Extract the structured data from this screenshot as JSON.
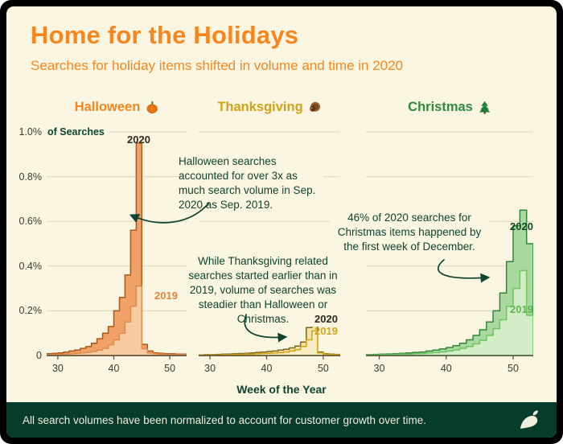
{
  "style": {
    "background": "#FAF6E1",
    "frame_border": "#000000",
    "accent_orange": "#F8861D",
    "accent_gold": "#D2A217",
    "accent_green": "#2E8B3D",
    "dark_green": "#0F4430",
    "grid_color": "#DBD6BB",
    "axis_color": "#55503C",
    "tick_text": "#3B3B2E",
    "footer_bg": "#053D2A",
    "footer_text": "#F2EDDC"
  },
  "header": {
    "title": "Home for the Holidays",
    "subtitle": "Searches for holiday items shifted in volume and time in 2020"
  },
  "y_axis": {
    "suffix": "of Searches",
    "ticks": [
      "1.0%",
      "0.8%",
      "0.6%",
      "0.4%",
      "0.2%",
      "0"
    ]
  },
  "x_axis": {
    "label": "Week of the Year",
    "ticks": [
      30,
      40,
      50
    ]
  },
  "annotations": [
    {
      "text": "Halloween searches accounted for over 3x as much search volume in Sep. 2020 as Sep. 2019."
    },
    {
      "text": "While Thanksgiving related searches started earlier than in 2019, volume of searches was steadier than Halloween or Christmas."
    },
    {
      "text": "46% of 2020 searches for Christmas items happened by the first week of December."
    }
  ],
  "footer": {
    "text": "All search volumes have been normalized to account for customer growth over time.",
    "logo": "carrot-icon"
  },
  "chart_data": [
    {
      "type": "area",
      "title": "Halloween",
      "icon": "pumpkin-icon",
      "title_color": "#F8861D",
      "week_range": [
        28,
        53
      ],
      "ymax": 1.0,
      "grid_step": 0.2,
      "ylabel": "% of Searches",
      "xlabel": "Week of the Year",
      "series": [
        {
          "name": "2020",
          "label_color": "#2E2A1C",
          "fill": "#EE9C60",
          "fill_opacity": 0.95,
          "stroke": "#AE5817",
          "weeks": [
            28,
            29,
            30,
            31,
            32,
            33,
            34,
            35,
            36,
            37,
            38,
            39,
            40,
            41,
            42,
            43,
            44,
            45,
            46,
            47,
            48,
            49,
            50,
            51,
            52
          ],
          "values": [
            0.008,
            0.01,
            0.012,
            0.015,
            0.02,
            0.025,
            0.032,
            0.04,
            0.055,
            0.075,
            0.1,
            0.13,
            0.2,
            0.26,
            0.36,
            0.56,
            0.95,
            0.05,
            0.02,
            0.012,
            0.01,
            0.008,
            0.008,
            0.006,
            0.006
          ]
        },
        {
          "name": "2019",
          "label_color": "#E8833C",
          "fill": "#F8CFA8",
          "fill_opacity": 0.92,
          "stroke": "#E08B4C",
          "weeks": [
            28,
            29,
            30,
            31,
            32,
            33,
            34,
            35,
            36,
            37,
            38,
            39,
            40,
            41,
            42,
            43,
            44,
            45,
            46,
            47,
            48,
            49,
            50,
            51,
            52
          ],
          "values": [
            0.004,
            0.005,
            0.006,
            0.007,
            0.008,
            0.01,
            0.012,
            0.014,
            0.018,
            0.024,
            0.032,
            0.048,
            0.07,
            0.1,
            0.15,
            0.22,
            0.31,
            0.03,
            0.012,
            0.008,
            0.006,
            0.005,
            0.005,
            0.004,
            0.004
          ]
        }
      ]
    },
    {
      "type": "area",
      "title": "Thanksgiving",
      "icon": "turkey-icon",
      "title_color": "#D2A217",
      "week_range": [
        28,
        53
      ],
      "ymax": 1.0,
      "grid_step": 0.2,
      "ylabel": "% of Searches",
      "xlabel": "Week of the Year",
      "series": [
        {
          "name": "2020",
          "label_color": "#2E2A1C",
          "fill": "#F6E1A3",
          "fill_opacity": 0.95,
          "stroke": "#7A671D",
          "weeks": [
            28,
            29,
            30,
            31,
            32,
            33,
            34,
            35,
            36,
            37,
            38,
            39,
            40,
            41,
            42,
            43,
            44,
            45,
            46,
            47,
            48,
            49,
            50,
            51,
            52
          ],
          "values": [
            0.003,
            0.004,
            0.004,
            0.005,
            0.006,
            0.007,
            0.008,
            0.009,
            0.01,
            0.012,
            0.014,
            0.016,
            0.018,
            0.02,
            0.024,
            0.028,
            0.034,
            0.042,
            0.06,
            0.125,
            0.14,
            0.015,
            0.008,
            0.006,
            0.005
          ]
        },
        {
          "name": "2019",
          "label_color": "#D2A217",
          "fill": "#F8ECC6",
          "fill_opacity": 0.9,
          "stroke": "#D2A217",
          "weeks": [
            28,
            29,
            30,
            31,
            32,
            33,
            34,
            35,
            36,
            37,
            38,
            39,
            40,
            41,
            42,
            43,
            44,
            45,
            46,
            47,
            48,
            49,
            50,
            51,
            52
          ],
          "values": [
            0.002,
            0.002,
            0.003,
            0.003,
            0.004,
            0.004,
            0.005,
            0.005,
            0.006,
            0.007,
            0.008,
            0.009,
            0.01,
            0.011,
            0.013,
            0.016,
            0.02,
            0.026,
            0.04,
            0.07,
            0.11,
            0.012,
            0.006,
            0.005,
            0.004
          ]
        }
      ]
    },
    {
      "type": "area",
      "title": "Christmas",
      "icon": "christmas-tree-icon",
      "title_color": "#2E8B3D",
      "week_range": [
        28,
        53
      ],
      "ymax": 1.0,
      "grid_step": 0.2,
      "ylabel": "% of Searches",
      "xlabel": "Week of the Year",
      "series": [
        {
          "name": "2020",
          "label_color": "#0C4A28",
          "fill": "#A4D79A",
          "fill_opacity": 0.95,
          "stroke": "#2F8638",
          "weeks": [
            28,
            29,
            30,
            31,
            32,
            33,
            34,
            35,
            36,
            37,
            38,
            39,
            40,
            41,
            42,
            43,
            44,
            45,
            46,
            47,
            48,
            49,
            50,
            51,
            52
          ],
          "values": [
            0.004,
            0.005,
            0.006,
            0.007,
            0.008,
            0.01,
            0.012,
            0.014,
            0.016,
            0.02,
            0.024,
            0.03,
            0.036,
            0.044,
            0.055,
            0.07,
            0.09,
            0.115,
            0.15,
            0.2,
            0.28,
            0.42,
            0.58,
            0.65,
            0.5
          ]
        },
        {
          "name": "2019",
          "label_color": "#62B356",
          "fill": "#D8EFCD",
          "fill_opacity": 0.92,
          "stroke": "#6FC45F",
          "weeks": [
            28,
            29,
            30,
            31,
            32,
            33,
            34,
            35,
            36,
            37,
            38,
            39,
            40,
            41,
            42,
            43,
            44,
            45,
            46,
            47,
            48,
            49,
            50,
            51,
            52
          ],
          "values": [
            0.003,
            0.003,
            0.004,
            0.004,
            0.005,
            0.006,
            0.007,
            0.008,
            0.009,
            0.011,
            0.013,
            0.016,
            0.02,
            0.025,
            0.032,
            0.04,
            0.052,
            0.068,
            0.09,
            0.12,
            0.16,
            0.22,
            0.3,
            0.38,
            0.18
          ]
        }
      ]
    }
  ]
}
